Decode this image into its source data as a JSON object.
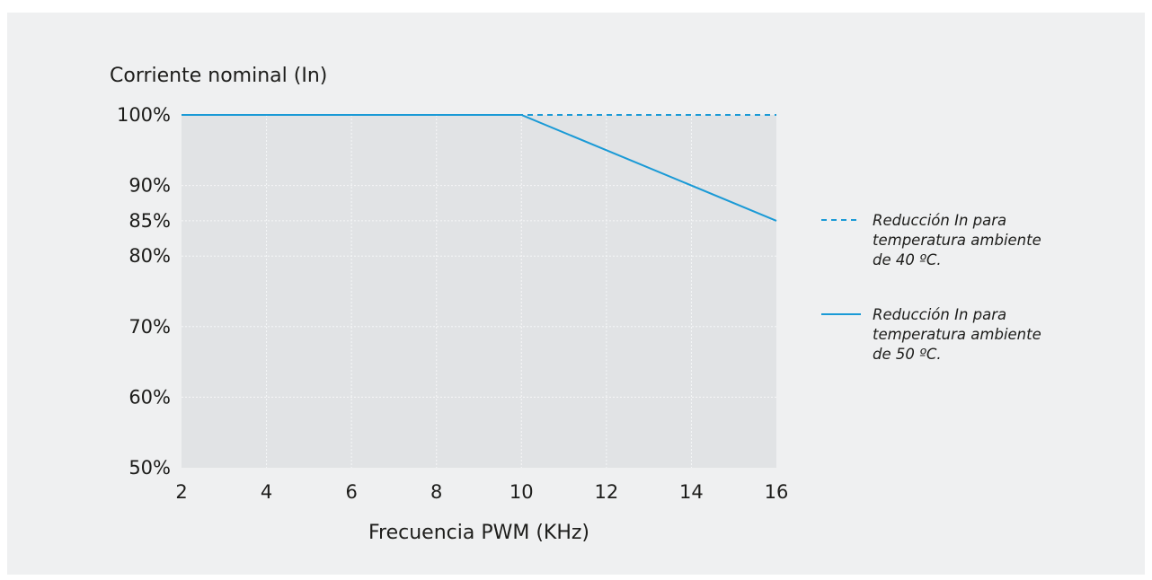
{
  "chart_data": {
    "type": "line",
    "ylabel": "Corriente nominal (In)",
    "xlabel": "Frecuencia PWM (KHz)",
    "xlim": [
      2,
      16
    ],
    "ylim": [
      50,
      100
    ],
    "x_ticks": [
      "2",
      "4",
      "6",
      "8",
      "10",
      "12",
      "14",
      "16"
    ],
    "y_ticks": [
      {
        "value": 50,
        "label": "50%"
      },
      {
        "value": 60,
        "label": "60%"
      },
      {
        "value": 70,
        "label": "70%"
      },
      {
        "value": 80,
        "label": "80%"
      },
      {
        "value": 85,
        "label": "85%"
      },
      {
        "value": 90,
        "label": "90%"
      },
      {
        "value": 100,
        "label": "100%"
      }
    ],
    "grid": true,
    "legend_position": "right",
    "series": [
      {
        "name": "Reducción In para temperatura ambiente de 40 ºC.",
        "legend_lines": [
          "Reducción In para",
          "temperatura ambiente",
          "de 40 ºC."
        ],
        "style": "dashed",
        "color": "#1a9ad6",
        "x": [
          2,
          10,
          16
        ],
        "y": [
          100,
          100,
          100
        ]
      },
      {
        "name": "Reducción In para temperatura ambiente de 50 ºC.",
        "legend_lines": [
          "Reducción In para",
          "temperatura ambiente",
          "de 50 ºC."
        ],
        "style": "solid",
        "color": "#1a9ad6",
        "x": [
          2,
          10,
          16
        ],
        "y": [
          100,
          100,
          85
        ]
      }
    ],
    "plot_fill_color": "#e1e3e5",
    "panel_color": "#eff0f1"
  }
}
